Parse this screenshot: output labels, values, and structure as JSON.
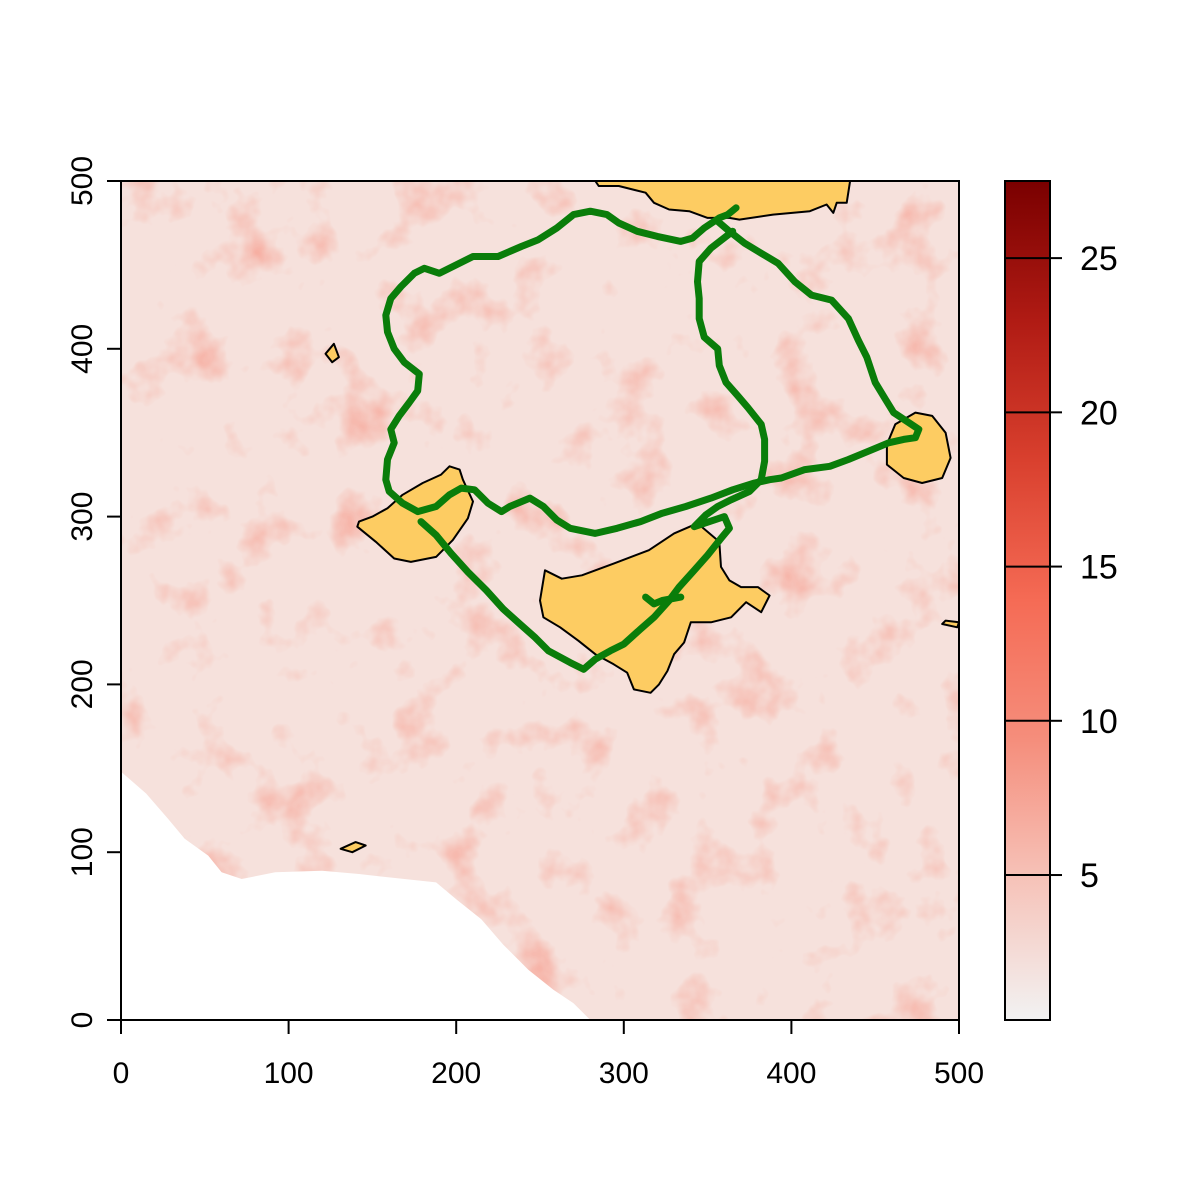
{
  "chart_data": {
    "type": "heatmap",
    "title": "",
    "xlabel": "",
    "ylabel": "",
    "xlim": [
      0,
      500
    ],
    "ylim": [
      0,
      500
    ],
    "x_ticks": [
      "0",
      "100",
      "200",
      "300",
      "400",
      "500"
    ],
    "y_ticks": [
      "0",
      "100",
      "200",
      "300",
      "400",
      "500"
    ],
    "colorbar": {
      "range": [
        0.3,
        27.5
      ],
      "ticks": [
        "5",
        "10",
        "15",
        "20",
        "25"
      ],
      "tick_values": [
        5,
        10,
        15,
        20,
        25
      ],
      "colors": [
        "#f2f2f2",
        "#f6c3b9",
        "#f58e7c",
        "#f56b55",
        "#d9402e",
        "#b01b14",
        "#7a0000"
      ]
    },
    "colors": {
      "raster_base": "#f6e1dc",
      "nodata": "#ffffff",
      "patch_fill": "#fdcc62",
      "patch_border": "#000000",
      "route": "#0a7d0a"
    },
    "patches": [
      {
        "name": "patch-top",
        "points": [
          [
            283,
            500
          ],
          [
            292,
            502
          ],
          [
            340,
            504
          ],
          [
            380,
            506
          ],
          [
            422,
            503
          ],
          [
            435,
            500
          ],
          [
            433,
            487
          ],
          [
            427,
            487
          ],
          [
            425,
            481
          ],
          [
            421,
            486
          ],
          [
            411,
            482
          ],
          [
            389,
            480
          ],
          [
            369,
            477
          ],
          [
            363,
            478
          ],
          [
            350,
            478
          ],
          [
            339,
            482
          ],
          [
            327,
            483
          ],
          [
            318,
            487
          ],
          [
            313,
            493
          ],
          [
            297,
            497
          ],
          [
            285,
            497
          ]
        ]
      },
      {
        "name": "patch-west",
        "points": [
          [
            141,
            294
          ],
          [
            152,
            285
          ],
          [
            163,
            275
          ],
          [
            173,
            273
          ],
          [
            188,
            276
          ],
          [
            198,
            286
          ],
          [
            207,
            299
          ],
          [
            210,
            309
          ],
          [
            204,
            322
          ],
          [
            202,
            328
          ],
          [
            196,
            330
          ],
          [
            191,
            325
          ],
          [
            180,
            320
          ],
          [
            168,
            313
          ],
          [
            159,
            305
          ],
          [
            150,
            300
          ],
          [
            142,
            297
          ]
        ]
      },
      {
        "name": "patch-center",
        "points": [
          [
            253,
            268
          ],
          [
            263,
            263
          ],
          [
            275,
            265
          ],
          [
            294,
            272
          ],
          [
            315,
            280
          ],
          [
            330,
            290
          ],
          [
            344,
            296
          ],
          [
            357,
            285
          ],
          [
            358,
            270
          ],
          [
            363,
            262
          ],
          [
            370,
            258
          ],
          [
            380,
            258
          ],
          [
            387,
            253
          ],
          [
            382,
            243
          ],
          [
            373,
            249
          ],
          [
            364,
            240
          ],
          [
            352,
            237
          ],
          [
            340,
            237
          ],
          [
            336,
            225
          ],
          [
            330,
            218
          ],
          [
            326,
            208
          ],
          [
            321,
            200
          ],
          [
            316,
            195
          ],
          [
            306,
            197
          ],
          [
            302,
            207
          ],
          [
            294,
            212
          ],
          [
            283,
            218
          ],
          [
            273,
            226
          ],
          [
            262,
            234
          ],
          [
            252,
            240
          ],
          [
            250,
            250
          ]
        ]
      },
      {
        "name": "patch-east",
        "points": [
          [
            457,
            343
          ],
          [
            462,
            355
          ],
          [
            474,
            362
          ],
          [
            484,
            360
          ],
          [
            492,
            350
          ],
          [
            495,
            335
          ],
          [
            490,
            323
          ],
          [
            478,
            320
          ],
          [
            467,
            323
          ],
          [
            457,
            331
          ]
        ]
      },
      {
        "name": "patch-small-1",
        "points": [
          [
            122,
            397
          ],
          [
            127,
            403
          ],
          [
            130,
            395
          ],
          [
            126,
            392
          ]
        ]
      },
      {
        "name": "patch-small-2",
        "points": [
          [
            131,
            102
          ],
          [
            140,
            106
          ],
          [
            146,
            104
          ],
          [
            138,
            100
          ]
        ]
      },
      {
        "name": "patch-small-3",
        "points": [
          [
            490,
            236
          ],
          [
            499,
            234
          ],
          [
            500,
            237
          ],
          [
            492,
            238
          ]
        ]
      }
    ],
    "routes": [
      {
        "name": "route-outer",
        "points": [
          [
            367,
            484
          ],
          [
            362,
            480
          ],
          [
            357,
            478
          ],
          [
            348,
            472
          ],
          [
            341,
            466
          ],
          [
            334,
            464
          ],
          [
            320,
            467
          ],
          [
            308,
            470
          ],
          [
            297,
            475
          ],
          [
            290,
            480
          ],
          [
            280,
            482
          ],
          [
            270,
            480
          ],
          [
            260,
            472
          ],
          [
            249,
            465
          ],
          [
            239,
            461
          ],
          [
            225,
            455
          ],
          [
            210,
            455
          ],
          [
            200,
            450
          ],
          [
            190,
            445
          ],
          [
            181,
            448
          ],
          [
            175,
            445
          ],
          [
            167,
            437
          ],
          [
            161,
            430
          ],
          [
            158,
            420
          ],
          [
            159,
            410
          ],
          [
            163,
            400
          ],
          [
            169,
            392
          ],
          [
            178,
            385
          ],
          [
            177,
            375
          ],
          [
            172,
            368
          ],
          [
            166,
            360
          ],
          [
            161,
            352
          ],
          [
            163,
            344
          ],
          [
            159,
            334
          ],
          [
            158,
            322
          ],
          [
            160,
            315
          ],
          [
            168,
            308
          ],
          [
            177,
            303
          ],
          [
            188,
            306
          ],
          [
            196,
            313
          ],
          [
            203,
            317
          ],
          [
            211,
            316
          ],
          [
            219,
            308
          ],
          [
            227,
            303
          ],
          [
            232,
            306
          ],
          [
            244,
            311
          ],
          [
            252,
            306
          ],
          [
            260,
            298
          ],
          [
            268,
            293
          ],
          [
            283,
            290
          ],
          [
            296,
            293
          ],
          [
            310,
            297
          ],
          [
            323,
            302
          ],
          [
            337,
            306
          ],
          [
            352,
            311
          ],
          [
            365,
            316
          ],
          [
            378,
            320
          ],
          [
            387,
            322
          ],
          [
            394,
            323
          ],
          [
            408,
            328
          ],
          [
            423,
            330
          ],
          [
            434,
            334
          ],
          [
            446,
            339
          ],
          [
            458,
            344
          ],
          [
            467,
            346
          ],
          [
            474,
            347
          ],
          [
            476,
            352
          ],
          [
            470,
            356
          ],
          [
            461,
            362
          ],
          [
            456,
            370
          ],
          [
            450,
            380
          ],
          [
            445,
            395
          ],
          [
            440,
            405
          ],
          [
            434,
            418
          ],
          [
            424,
            429
          ],
          [
            412,
            432
          ],
          [
            402,
            440
          ],
          [
            392,
            451
          ],
          [
            382,
            457
          ],
          [
            372,
            463
          ],
          [
            363,
            470
          ],
          [
            356,
            476
          ]
        ]
      },
      {
        "name": "route-inner",
        "points": [
          [
            365,
            470
          ],
          [
            352,
            460
          ],
          [
            345,
            452
          ],
          [
            344,
            440
          ],
          [
            345,
            430
          ],
          [
            345,
            418
          ],
          [
            348,
            407
          ],
          [
            356,
            400
          ],
          [
            357,
            390
          ],
          [
            361,
            380
          ],
          [
            368,
            372
          ],
          [
            374,
            365
          ],
          [
            382,
            355
          ],
          [
            384,
            346
          ],
          [
            384,
            333
          ],
          [
            382,
            322
          ],
          [
            375,
            315
          ],
          [
            364,
            310
          ],
          [
            356,
            306
          ],
          [
            349,
            301
          ],
          [
            342,
            294
          ],
          [
            360,
            300
          ],
          [
            363,
            293
          ],
          [
            358,
            287
          ],
          [
            350,
            277
          ],
          [
            342,
            268
          ],
          [
            333,
            258
          ],
          [
            327,
            250
          ],
          [
            318,
            240
          ],
          [
            310,
            233
          ],
          [
            300,
            224
          ],
          [
            292,
            220
          ],
          [
            283,
            215
          ],
          [
            276,
            209
          ],
          [
            268,
            213
          ],
          [
            255,
            220
          ],
          [
            247,
            228
          ],
          [
            238,
            236
          ],
          [
            228,
            245
          ],
          [
            218,
            256
          ],
          [
            207,
            267
          ],
          [
            197,
            278
          ],
          [
            188,
            289
          ],
          [
            179,
            297
          ]
        ]
      },
      {
        "name": "route-tail",
        "points": [
          [
            334,
            252
          ],
          [
            323,
            250
          ],
          [
            318,
            248
          ],
          [
            313,
            252
          ]
        ]
      }
    ]
  }
}
